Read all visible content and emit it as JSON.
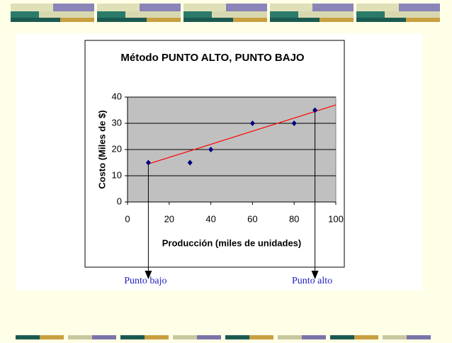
{
  "chart_data": {
    "type": "scatter",
    "title": "Método PUNTO ALTO, PUNTO BAJO",
    "x_label": "Producción (miles de unidades)",
    "y_label": "Costo (Miles de $)",
    "series": [
      {
        "x": [
          10,
          30,
          40,
          60,
          80,
          90
        ],
        "values": [
          15,
          15,
          20,
          30,
          30,
          35
        ],
        "color": "#000080"
      }
    ],
    "trendline": {
      "x": [
        10,
        100
      ],
      "values": [
        14.5,
        37
      ],
      "color": "#ff0000"
    },
    "xlim": [
      0,
      100
    ],
    "xticks": [
      0,
      20,
      40,
      60,
      80,
      100
    ],
    "ylim": [
      0,
      40
    ],
    "yticks": [
      0,
      10,
      20,
      30,
      40
    ],
    "grid": true,
    "annotations": [
      {
        "text": "Punto bajo",
        "x": 10
      },
      {
        "text": "Punto alto",
        "x": 90
      }
    ]
  }
}
